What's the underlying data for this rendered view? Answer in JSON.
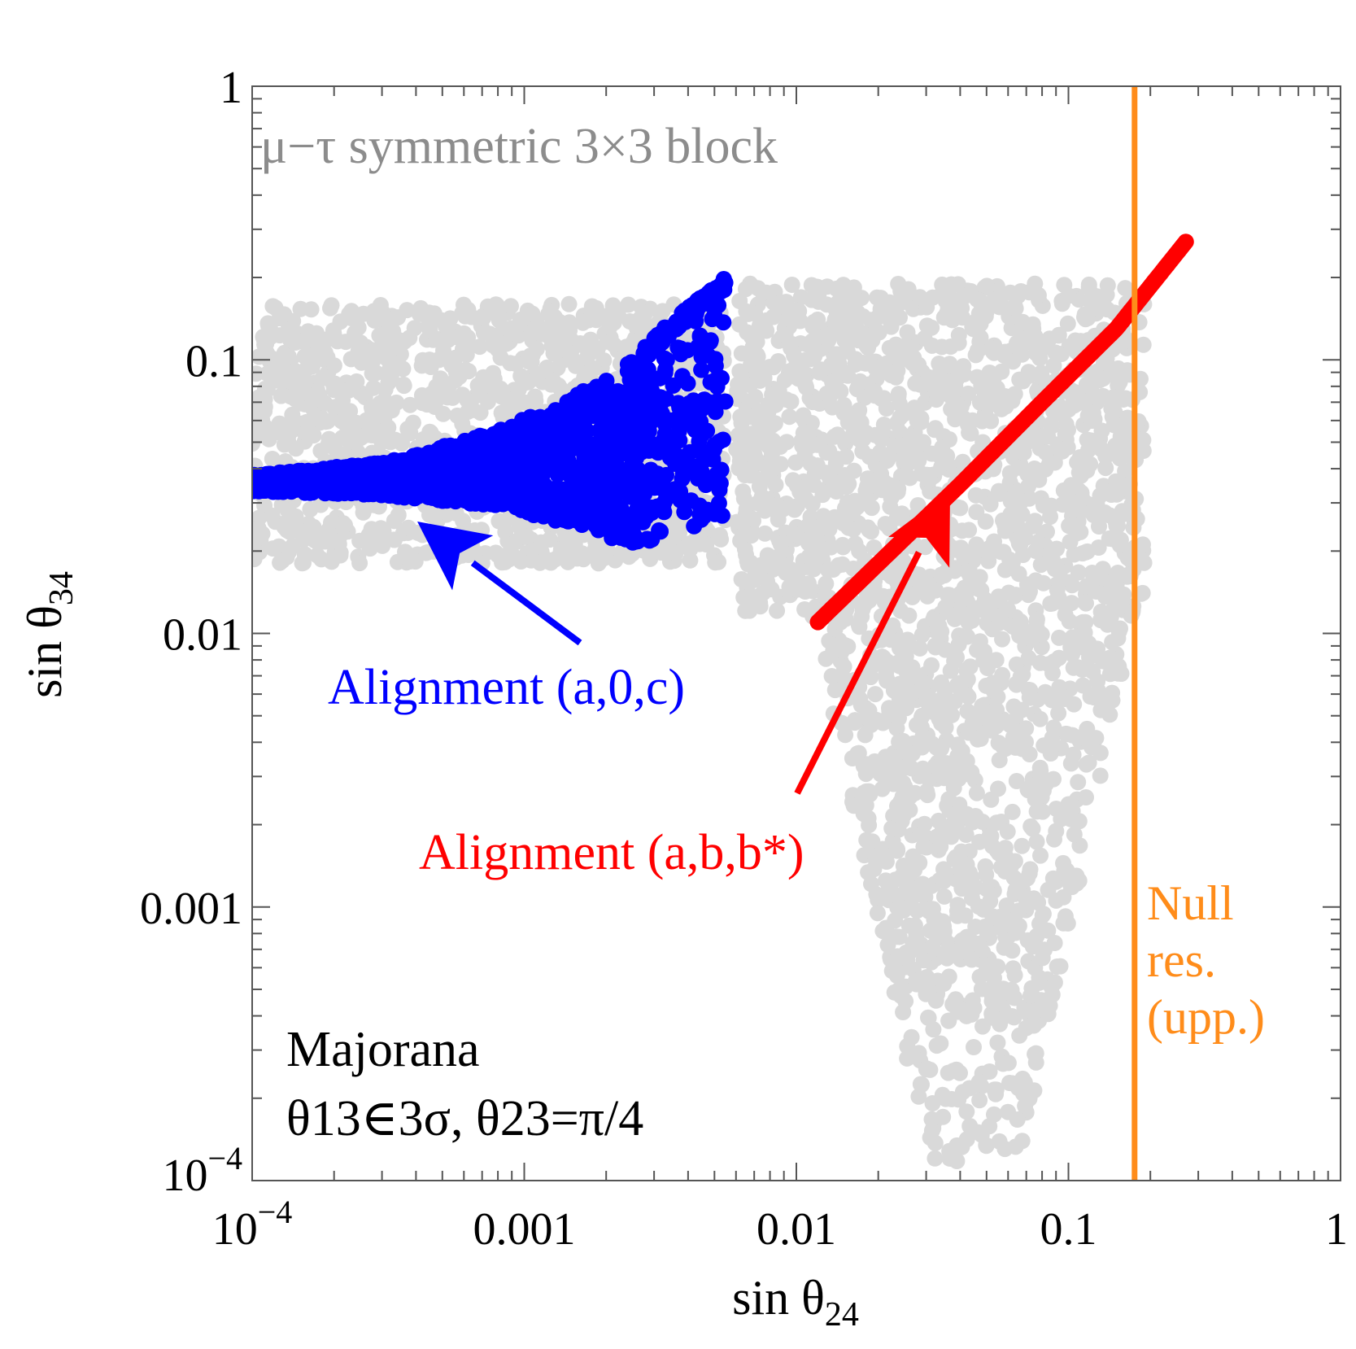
{
  "chart_data": {
    "type": "scatter",
    "xscale": "log",
    "yscale": "log",
    "xlim": [
      0.0001,
      1
    ],
    "ylim": [
      0.0001,
      1
    ],
    "xlabel": {
      "base": "sin θ",
      "sub": "24"
    },
    "ylabel": {
      "base": "sin θ",
      "sub": "34"
    },
    "x_ticks": [
      {
        "value": 0.0001,
        "base": "10",
        "exp": "−4"
      },
      {
        "value": 0.001,
        "label": "0.001"
      },
      {
        "value": 0.01,
        "label": "0.01"
      },
      {
        "value": 0.1,
        "label": "0.1"
      },
      {
        "value": 1,
        "label": "1"
      }
    ],
    "y_ticks": [
      {
        "value": 0.0001,
        "base": "10",
        "exp": "−4"
      },
      {
        "value": 0.001,
        "label": "0.001"
      },
      {
        "value": 0.01,
        "label": "0.01"
      },
      {
        "value": 0.1,
        "label": "0.1"
      },
      {
        "value": 1,
        "label": "1"
      }
    ],
    "title": "μ−τ symmetric 3×3 block",
    "legend_block": {
      "line1": "Majorana",
      "line2": "θ13∈3σ, θ23=π/4"
    },
    "series": [
      {
        "kind": "scatter-region",
        "color": "#d9d9d9",
        "regions": [
          {
            "x": [
              0.0001,
              0.0055
            ],
            "y": [
              0.018,
              0.16
            ]
          },
          {
            "x": [
              0.006,
              0.19
            ],
            "y": [
              0.012,
              0.19
            ]
          },
          {
            "x": [
              0.016,
              0.14
            ],
            "y": [
              0.0001,
              0.012
            ]
          }
        ]
      },
      {
        "name": "Alignment (a,0,c)",
        "color": "#0000ff",
        "kind": "band",
        "x": [
          0.0001,
          0.0003,
          0.0008,
          0.0015,
          0.0025,
          0.0035,
          0.0045,
          0.0055
        ],
        "y_low": [
          0.033,
          0.032,
          0.029,
          0.025,
          0.021,
          0.023,
          0.025,
          0.027
        ],
        "y_high": [
          0.038,
          0.042,
          0.055,
          0.073,
          0.1,
          0.14,
          0.17,
          0.2
        ]
      },
      {
        "name": "Alignment (a,b,b*)",
        "color": "#ff0000",
        "kind": "line",
        "x": [
          0.012,
          0.02,
          0.04,
          0.08,
          0.15,
          0.27
        ],
        "y": [
          0.011,
          0.018,
          0.035,
          0.07,
          0.13,
          0.27
        ]
      }
    ],
    "vline": {
      "x": 0.175,
      "color": "#ff8c1a",
      "label_lines": [
        "Null",
        "res.",
        "(upp.)"
      ]
    },
    "annotations": {
      "blue_label": "Alignment (a,0,c)",
      "red_label": "Alignment (a,b,b*)"
    }
  }
}
